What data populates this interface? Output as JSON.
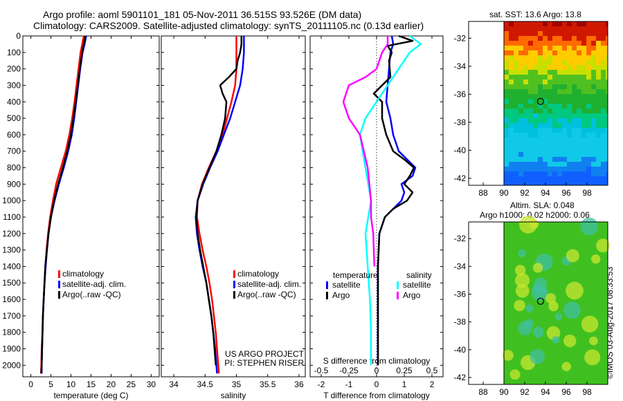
{
  "header": {
    "title": "Argo profile: aoml 5901101_181 05-Nov-2011 36.515S 93.526E (DM data)",
    "subtitle": "Climatology: CARS2009. Satellite-adjusted climatology: synTS_20111105.nc (0.13d earlier)"
  },
  "maps": {
    "sst_title": "sat. SST: 13.6 Argo: 13.8",
    "sla_title": "Altim. SLA: 0.048",
    "sla_subtitle": "Argo h1000: 0.02 h2000: 0.06",
    "lat_ticks": [
      -32,
      -34,
      -36,
      -38,
      -40,
      -42
    ],
    "lon_ticks": [
      88,
      90,
      92,
      94,
      96,
      98
    ],
    "argo_position": {
      "lon": 93.526,
      "lat": -36.515
    }
  },
  "credit": "©IMOS 03-Aug-2017 08:33:53",
  "colors": {
    "climatology": "#ff0000",
    "satellite": "#0000ff",
    "argo": "#000000",
    "satellite_salinity": "#00ffff",
    "argo_salinity": "#ff00ff"
  },
  "chart_data": [
    {
      "type": "line",
      "id": "temperature",
      "xlabel": "temperature (deg C)",
      "xlim": [
        -2,
        32
      ],
      "xticks": [
        0,
        5,
        10,
        15,
        20,
        25,
        30
      ],
      "ylim": [
        2070,
        0
      ],
      "yticks": [
        0,
        100,
        200,
        300,
        400,
        500,
        600,
        700,
        800,
        900,
        1000,
        1100,
        1200,
        1300,
        1400,
        1500,
        1600,
        1700,
        1800,
        1900,
        2000
      ],
      "legend": [
        "climatology",
        "satellite-adj. clim.",
        "Argo(..raw -QC)"
      ],
      "series": [
        {
          "name": "climatology",
          "color": "#ff0000",
          "depth": [
            0,
            50,
            100,
            200,
            300,
            400,
            500,
            600,
            700,
            800,
            900,
            1000,
            1100,
            1200,
            1300,
            1400,
            1500,
            1600,
            1700,
            1800,
            1900,
            2000,
            2050
          ],
          "values": [
            13.2,
            12.8,
            12.4,
            11.9,
            11.4,
            10.9,
            10.3,
            9.6,
            8.7,
            7.5,
            6.3,
            5.5,
            4.8,
            4.3,
            3.9,
            3.6,
            3.4,
            3.2,
            3.0,
            2.9,
            2.7,
            2.6,
            2.5
          ]
        },
        {
          "name": "satellite-adj. clim.",
          "color": "#0000ff",
          "depth": [
            0,
            50,
            100,
            200,
            300,
            400,
            500,
            600,
            700,
            800,
            900,
            1000,
            1100,
            1200,
            1300,
            1400,
            1500,
            1600,
            1700,
            1800,
            1900,
            2000,
            2050
          ],
          "values": [
            13.8,
            13.4,
            12.9,
            12.3,
            11.8,
            11.3,
            10.8,
            10.2,
            9.3,
            8.2,
            7.0,
            5.9,
            5.0,
            4.4,
            4.0,
            3.7,
            3.4,
            3.2,
            3.0,
            2.9,
            2.8,
            2.7,
            2.7
          ]
        },
        {
          "name": "Argo(..raw -QC)",
          "color": "#000000",
          "depth": [
            0,
            50,
            100,
            200,
            300,
            400,
            500,
            600,
            700,
            800,
            900,
            1000,
            1100,
            1200,
            1300,
            1400,
            1500,
            1600,
            1700,
            1800,
            1900,
            2000,
            2050
          ],
          "values": [
            13.6,
            13.2,
            12.8,
            12.2,
            11.7,
            11.2,
            10.6,
            10.0,
            9.1,
            8.0,
            6.8,
            5.8,
            5.0,
            4.4,
            4.0,
            3.6,
            3.4,
            3.2,
            3.0,
            2.9,
            2.8,
            2.7,
            2.6
          ]
        }
      ]
    },
    {
      "type": "line",
      "id": "salinity",
      "xlabel": "salinity",
      "xlim": [
        33.8,
        36.1
      ],
      "xticks": [
        34,
        34.5,
        35,
        35.5,
        36
      ],
      "ylim": [
        2070,
        0
      ],
      "legend": [
        "climatology",
        "satellite-adj. clim.",
        "Argo(..raw -QC)"
      ],
      "annotation": [
        "US ARGO PROJECT",
        "PI: STEPHEN RISER"
      ],
      "series": [
        {
          "name": "climatology",
          "color": "#ff0000",
          "depth": [
            0,
            50,
            100,
            200,
            300,
            400,
            500,
            600,
            700,
            800,
            900,
            1000,
            1100,
            1200,
            1300,
            1400,
            1500,
            1600,
            1700,
            1800,
            1900,
            2000,
            2050
          ],
          "values": [
            35.0,
            35.0,
            35.0,
            35.0,
            34.98,
            34.92,
            34.85,
            34.78,
            34.68,
            34.56,
            34.45,
            34.38,
            34.37,
            34.41,
            34.46,
            34.52,
            34.57,
            34.61,
            34.64,
            34.67,
            34.69,
            34.71,
            34.72
          ]
        },
        {
          "name": "satellite-adj. clim.",
          "color": "#0000ff",
          "depth": [
            0,
            50,
            100,
            200,
            300,
            400,
            500,
            600,
            700,
            800,
            900,
            1000,
            1100,
            1200,
            1300,
            1400,
            1500,
            1600,
            1700,
            1800,
            1900,
            2000,
            2050
          ],
          "values": [
            35.12,
            35.12,
            35.12,
            35.1,
            35.06,
            34.98,
            34.9,
            34.8,
            34.7,
            34.58,
            34.47,
            34.38,
            34.35,
            34.37,
            34.41,
            34.46,
            34.52,
            34.56,
            34.6,
            34.63,
            34.66,
            34.68,
            34.69
          ]
        },
        {
          "name": "Argo(..raw -QC)",
          "color": "#000000",
          "depth": [
            0,
            50,
            100,
            150,
            200,
            250,
            300,
            350,
            400,
            500,
            600,
            700,
            800,
            900,
            1000,
            1100,
            1200,
            1300,
            1400,
            1500,
            1600,
            1700,
            1800,
            1900,
            2000
          ],
          "values": [
            35.08,
            35.08,
            35.06,
            35.02,
            35.0,
            34.88,
            34.74,
            34.78,
            34.84,
            34.82,
            34.76,
            34.68,
            34.57,
            34.46,
            34.38,
            34.36,
            34.38,
            34.42,
            34.47,
            34.52,
            34.56,
            34.6,
            34.63,
            34.65,
            34.67
          ]
        }
      ]
    },
    {
      "type": "line",
      "id": "differences",
      "xlabel": "T difference from climatology",
      "xlabel2": "S difference from climatology",
      "xlim": [
        -2.4,
        2.4
      ],
      "xticks": [
        -2,
        -1,
        0,
        1,
        2
      ],
      "xticks2": [
        -0.5,
        -0.25,
        0,
        0.25,
        0.5
      ],
      "xticks2_labels": [
        "-0.5",
        "-0.25",
        "0",
        "0.25",
        "0.5"
      ],
      "ylim": [
        2070,
        0
      ],
      "legend_temperature_title": "temperature",
      "legend_salinity_title": "salinity",
      "legend_temperature": [
        "satellite",
        "Argo"
      ],
      "legend_salinity": [
        "satellite",
        "Argo"
      ],
      "series": [
        {
          "name": "temperature satellite",
          "color": "#0000ff",
          "depth": [
            0,
            50,
            100,
            200,
            300,
            400,
            500,
            600,
            700,
            750,
            800,
            850,
            900,
            950,
            1000,
            1050,
            1100,
            1200,
            1400,
            1600,
            1800,
            2000
          ],
          "values": [
            0.55,
            0.6,
            0.5,
            0.45,
            0.4,
            0.35,
            0.5,
            0.6,
            0.8,
            1.1,
            1.4,
            1.3,
            0.9,
            1.0,
            0.9,
            0.6,
            0.3,
            0.1,
            0.05,
            0.05,
            0.05,
            0.05
          ]
        },
        {
          "name": "temperature Argo",
          "color": "#000000",
          "depth": [
            0,
            30,
            60,
            100,
            150,
            250,
            300,
            350,
            400,
            500,
            600,
            700,
            750,
            800,
            850,
            900,
            950,
            1000,
            1050,
            1100,
            1200,
            1400,
            1600,
            1800,
            2000
          ],
          "values": [
            0.8,
            1.3,
            0.4,
            0.55,
            0.45,
            0.5,
            0.2,
            -0.1,
            0.2,
            0.2,
            0.35,
            0.6,
            1.0,
            1.35,
            1.2,
            1.0,
            1.3,
            1.1,
            0.6,
            0.3,
            0.1,
            0.05,
            0.05,
            0.05,
            0.05
          ]
        },
        {
          "name": "salinity satellite",
          "color": "#00ffff",
          "depth": [
            0,
            50,
            100,
            200,
            300,
            400,
            500,
            600,
            800,
            1000,
            1200,
            1400,
            1600,
            1800,
            2000
          ],
          "values": [
            0.3,
            0.4,
            0.3,
            0.2,
            0.1,
            0.0,
            -0.1,
            -0.15,
            -0.1,
            -0.05,
            -0.1,
            -0.08,
            -0.06,
            -0.05,
            -0.05
          ]
        },
        {
          "name": "salinity Argo",
          "color": "#ff00ff",
          "depth": [
            0,
            50,
            100,
            200,
            250,
            300,
            400,
            500,
            600,
            800,
            1000,
            1100,
            1200,
            1400
          ],
          "values": [
            0.1,
            0.1,
            0.05,
            0.0,
            -0.1,
            -0.25,
            -0.3,
            -0.25,
            -0.15,
            -0.08,
            -0.05,
            -0.05,
            -0.03,
            -0.02
          ]
        }
      ]
    }
  ]
}
